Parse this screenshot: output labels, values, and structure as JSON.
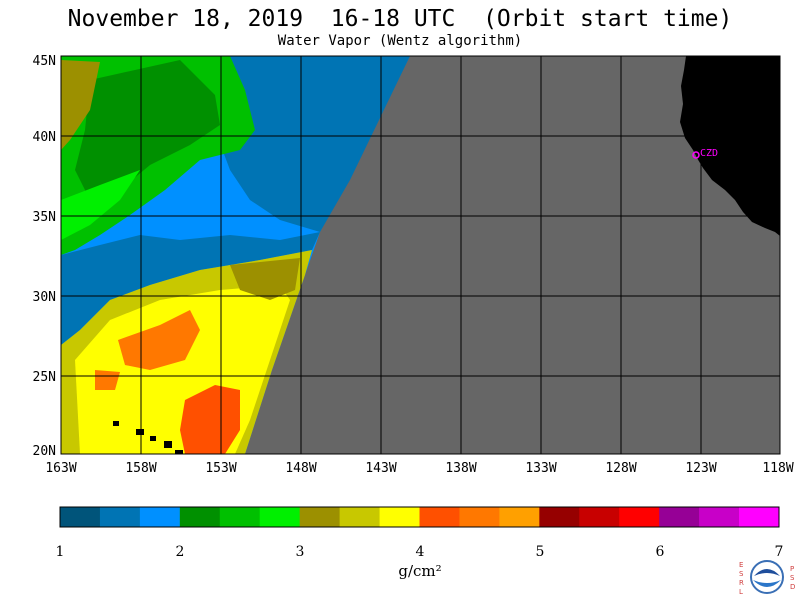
{
  "header": {
    "title": "November 18, 2019  16-18 UTC  (Orbit start time)",
    "subtitle": "Water Vapor (Wentz algorithm)"
  },
  "map": {
    "lon_labels": [
      "163W",
      "158W",
      "153W",
      "148W",
      "143W",
      "138W",
      "133W",
      "128W",
      "123W",
      "118W"
    ],
    "lat_labels": [
      "45N",
      "40N",
      "35N",
      "30N",
      "25N",
      "20N"
    ],
    "lon_range": [
      -163,
      -118
    ],
    "lat_range": [
      20,
      45
    ],
    "station_label": "CZD",
    "colors": {
      "no_data": "#666666",
      "land": "#000000",
      "grid": "#000000",
      "station": "#ff00ff"
    }
  },
  "colorbar": {
    "unit": "g/cm²",
    "ticks": [
      "1",
      "2",
      "3",
      "4",
      "5",
      "6",
      "7"
    ],
    "range": [
      1,
      7
    ],
    "colors": [
      "#00547a",
      "#0074b4",
      "#0090ff",
      "#009000",
      "#00c000",
      "#00f000",
      "#9c9000",
      "#c8c800",
      "#ffff00",
      "#ff5000",
      "#ff7800",
      "#ffa000",
      "#960000",
      "#c80000",
      "#ff0000",
      "#960096",
      "#c800c8",
      "#ff00ff"
    ]
  },
  "logo": {
    "left_letters": "ESRL",
    "right_letters": "PSD",
    "name": "NOAA"
  }
}
